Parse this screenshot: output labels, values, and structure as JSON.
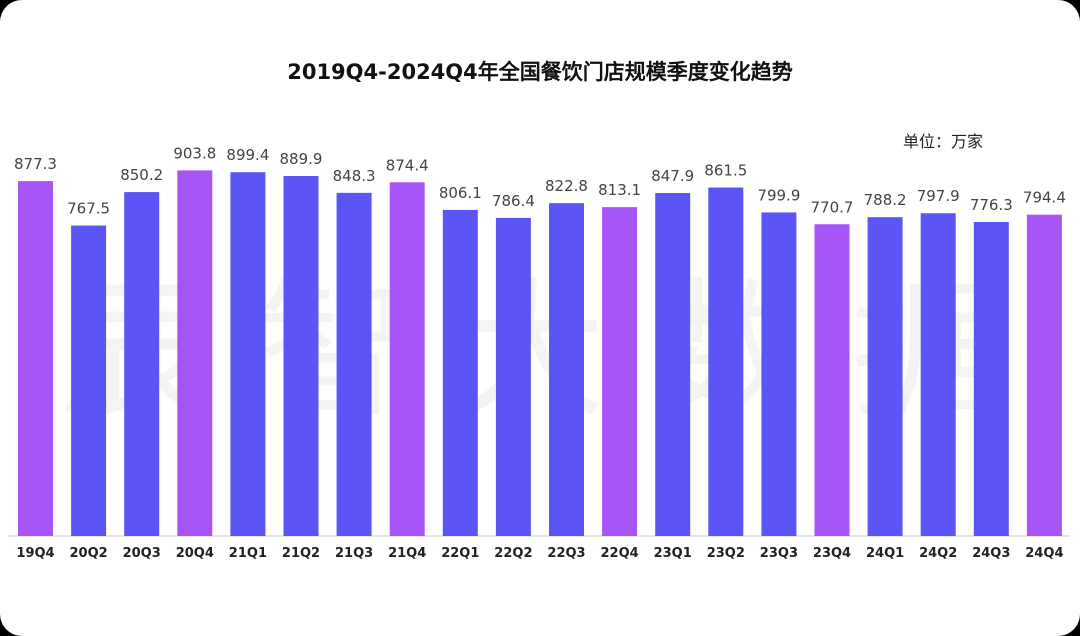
{
  "chart_data": {
    "type": "bar",
    "title": "2019Q4-2024Q4年全国餐饮门店规模季度变化趋势",
    "unit_label": "单位：万家",
    "categories": [
      "19Q4",
      "20Q2",
      "20Q3",
      "20Q4",
      "21Q1",
      "21Q2",
      "21Q3",
      "21Q4",
      "22Q1",
      "22Q2",
      "22Q3",
      "22Q4",
      "23Q1",
      "23Q2",
      "23Q3",
      "23Q4",
      "24Q1",
      "24Q2",
      "24Q3",
      "24Q4"
    ],
    "values": [
      877.3,
      767.5,
      850.2,
      903.8,
      899.4,
      889.9,
      848.3,
      874.4,
      806.1,
      786.4,
      822.8,
      813.1,
      847.9,
      861.5,
      799.9,
      770.7,
      788.2,
      797.9,
      776.3,
      794.4
    ],
    "highlight_q4": [
      true,
      false,
      false,
      true,
      false,
      false,
      false,
      true,
      false,
      false,
      false,
      true,
      false,
      false,
      false,
      true,
      false,
      false,
      false,
      true
    ],
    "colors": {
      "default": "#5b55f5",
      "q4": "#a855f7",
      "axis": "#cccccc",
      "label": "#444444"
    },
    "ylim": [
      0,
      1000
    ],
    "grid": false,
    "watermark": "辰 智 大 数 据"
  }
}
